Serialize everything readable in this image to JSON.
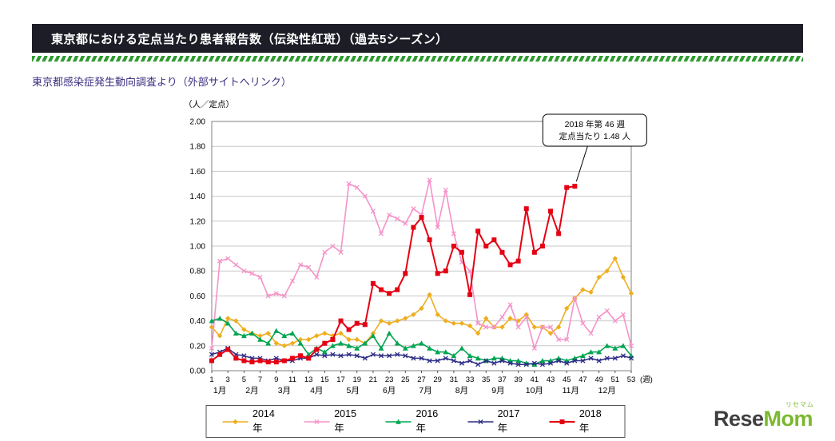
{
  "header": {
    "title": "東京都における定点当たり患者報告数（伝染性紅斑）（過去5シーズン）"
  },
  "source_link": {
    "text": "東京都感染症発生動向調査より（外部サイトへリンク）"
  },
  "logo": {
    "text_dark": "Rese",
    "text_green": "Mom",
    "katakana": "リセマム"
  },
  "colors": {
    "header_bg": "#1d1d27",
    "header_text": "#ffffff",
    "divider_green": "#2f9b2f",
    "link_text": "#3c2f80",
    "grid": "#c9c9c9",
    "logo_green": "#7cb82f",
    "logo_dark": "#3f3f3f"
  },
  "chart_data": {
    "type": "line",
    "title": "",
    "y_axis_label": "（人／定点）",
    "x_axis_suffix": "(週)",
    "ylim": [
      0,
      2.0
    ],
    "y_tick_step": 0.2,
    "y_tick_labels": [
      "0.00",
      "0.20",
      "0.40",
      "0.60",
      "0.80",
      "1.00",
      "1.20",
      "1.40",
      "1.60",
      "1.80",
      "2.00"
    ],
    "x_max": 53,
    "x_ticks": [
      1,
      3,
      5,
      7,
      9,
      11,
      13,
      15,
      17,
      19,
      21,
      23,
      25,
      27,
      29,
      31,
      33,
      35,
      37,
      39,
      41,
      43,
      45,
      47,
      49,
      51,
      53
    ],
    "month_labels": [
      {
        "label": "1月",
        "week": 2
      },
      {
        "label": "2月",
        "week": 6
      },
      {
        "label": "3月",
        "week": 10
      },
      {
        "label": "4月",
        "week": 14
      },
      {
        "label": "5月",
        "week": 18.5
      },
      {
        "label": "6月",
        "week": 23
      },
      {
        "label": "7月",
        "week": 27.5
      },
      {
        "label": "8月",
        "week": 32
      },
      {
        "label": "9月",
        "week": 36.5
      },
      {
        "label": "10月",
        "week": 41
      },
      {
        "label": "11月",
        "week": 45.5
      },
      {
        "label": "12月",
        "week": 50
      }
    ],
    "grid": true,
    "legend_position": "bottom",
    "annotation": {
      "lines": [
        "2018 年第 46 週",
        "定点当たり 1.48 人"
      ],
      "week": 46,
      "value": 1.48
    },
    "series": [
      {
        "name": "2014年",
        "color": "#EDAE1F",
        "marker": "diamond",
        "width": 1.6,
        "values": [
          0.35,
          0.28,
          0.42,
          0.4,
          0.33,
          0.3,
          0.28,
          0.3,
          0.22,
          0.2,
          0.22,
          0.25,
          0.25,
          0.28,
          0.3,
          0.28,
          0.3,
          0.25,
          0.25,
          0.22,
          0.3,
          0.4,
          0.38,
          0.4,
          0.42,
          0.45,
          0.5,
          0.61,
          0.45,
          0.4,
          0.38,
          0.38,
          0.36,
          0.3,
          0.42,
          0.35,
          0.35,
          0.42,
          0.4,
          0.45,
          0.35,
          0.35,
          0.3,
          0.35,
          0.5,
          0.58,
          0.65,
          0.63,
          0.75,
          0.8,
          0.9,
          0.75,
          0.62
        ]
      },
      {
        "name": "2015年",
        "color": "#F593C8",
        "marker": "x",
        "width": 1.6,
        "values": [
          0.18,
          0.88,
          0.9,
          0.85,
          0.8,
          0.78,
          0.75,
          0.6,
          0.62,
          0.6,
          0.72,
          0.85,
          0.83,
          0.75,
          0.95,
          1.0,
          0.95,
          1.5,
          1.47,
          1.4,
          1.28,
          1.1,
          1.25,
          1.22,
          1.18,
          1.3,
          1.25,
          1.53,
          1.15,
          1.45,
          1.1,
          0.87,
          0.8,
          0.38,
          0.35,
          0.35,
          0.43,
          0.53,
          0.35,
          0.43,
          0.18,
          0.35,
          0.35,
          0.25,
          0.25,
          0.58,
          0.38,
          0.3,
          0.43,
          0.48,
          0.4,
          0.45,
          0.2
        ]
      },
      {
        "name": "2016年",
        "color": "#00A551",
        "marker": "triangle",
        "width": 1.6,
        "values": [
          0.4,
          0.42,
          0.38,
          0.3,
          0.28,
          0.3,
          0.25,
          0.22,
          0.32,
          0.28,
          0.3,
          0.22,
          0.13,
          0.18,
          0.15,
          0.2,
          0.22,
          0.2,
          0.18,
          0.22,
          0.28,
          0.18,
          0.3,
          0.22,
          0.18,
          0.2,
          0.22,
          0.18,
          0.15,
          0.15,
          0.12,
          0.18,
          0.12,
          0.1,
          0.08,
          0.1,
          0.1,
          0.08,
          0.08,
          0.06,
          0.05,
          0.08,
          0.08,
          0.1,
          0.08,
          0.1,
          0.12,
          0.15,
          0.15,
          0.2,
          0.18,
          0.2,
          0.12
        ]
      },
      {
        "name": "2017年",
        "color": "#2D2D86",
        "marker": "x",
        "width": 1.5,
        "values": [
          0.13,
          0.15,
          0.18,
          0.13,
          0.12,
          0.1,
          0.1,
          0.08,
          0.1,
          0.08,
          0.08,
          0.1,
          0.1,
          0.13,
          0.12,
          0.13,
          0.12,
          0.13,
          0.12,
          0.1,
          0.13,
          0.12,
          0.12,
          0.13,
          0.12,
          0.1,
          0.1,
          0.08,
          0.08,
          0.1,
          0.08,
          0.06,
          0.08,
          0.05,
          0.08,
          0.06,
          0.08,
          0.06,
          0.05,
          0.05,
          0.06,
          0.05,
          0.06,
          0.08,
          0.06,
          0.08,
          0.08,
          0.1,
          0.08,
          0.1,
          0.1,
          0.12,
          0.1
        ]
      },
      {
        "name": "2018年",
        "color": "#E50012",
        "marker": "square",
        "width": 2,
        "values": [
          0.08,
          0.13,
          0.17,
          0.1,
          0.08,
          0.07,
          0.08,
          0.07,
          0.07,
          0.08,
          0.1,
          0.12,
          0.1,
          0.17,
          0.22,
          0.25,
          0.4,
          0.33,
          0.38,
          0.37,
          0.7,
          0.65,
          0.62,
          0.65,
          0.78,
          1.15,
          1.23,
          1.05,
          0.78,
          0.8,
          1.0,
          0.95,
          0.61,
          1.12,
          1.0,
          1.05,
          0.95,
          0.85,
          0.88,
          1.3,
          0.95,
          1.0,
          1.28,
          1.1,
          1.47,
          1.48
        ]
      }
    ]
  }
}
